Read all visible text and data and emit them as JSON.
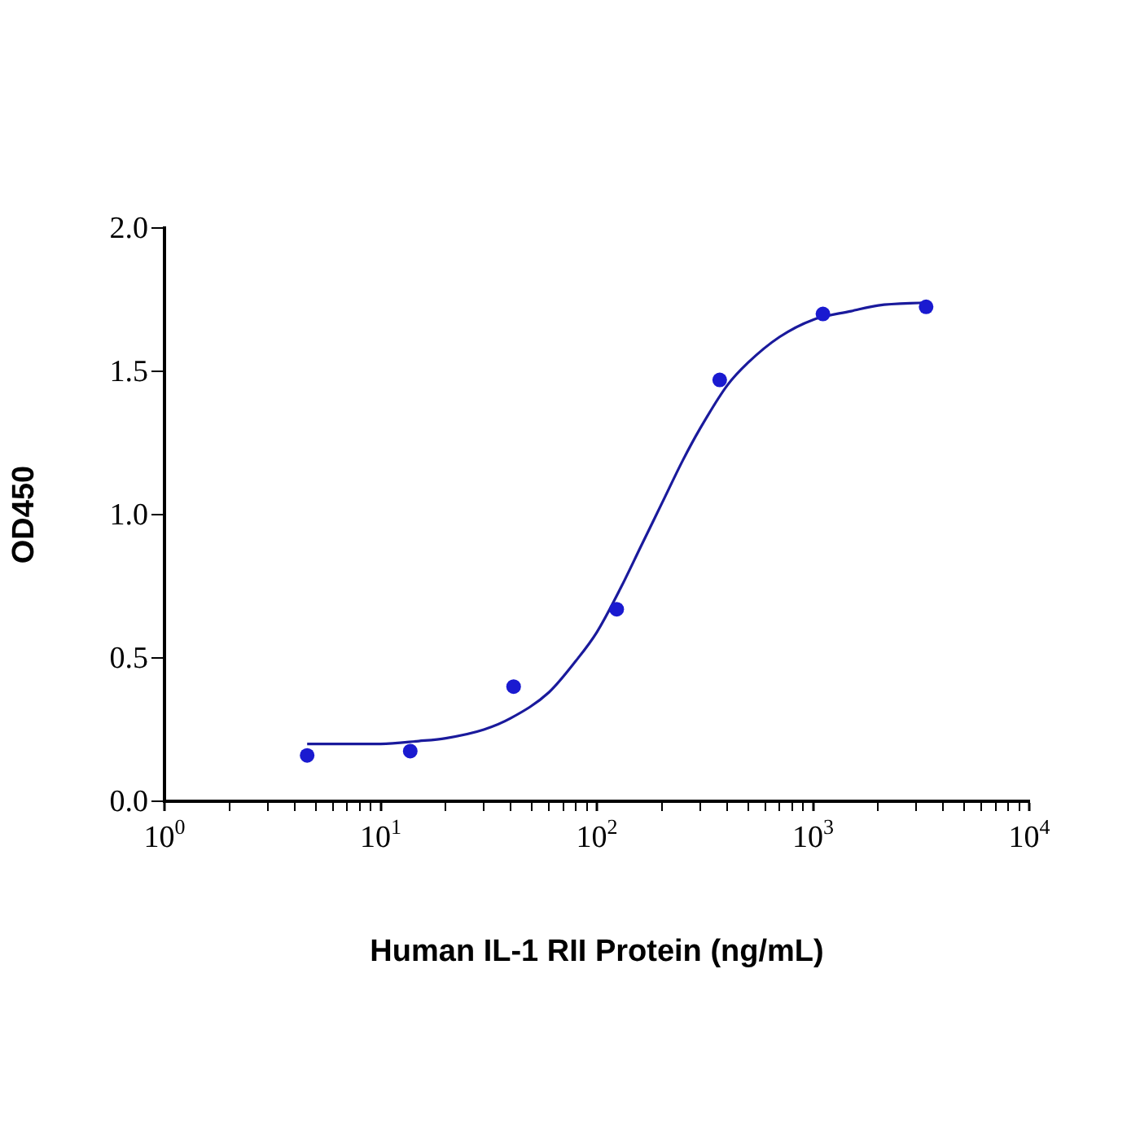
{
  "chart_data": {
    "type": "scatter",
    "xlabel": "Human IL-1 RII Protein (ng/mL)",
    "ylabel": "OD450",
    "log": "x",
    "grid": false,
    "xlim": [
      1,
      10000
    ],
    "xticks": [
      {
        "value": 1,
        "label": "10$^{0}$"
      },
      {
        "value": 2,
        "label": null
      },
      {
        "value": 3,
        "label": null
      },
      {
        "value": 4,
        "label": null
      },
      {
        "value": 5,
        "label": null
      },
      {
        "value": 6,
        "label": null
      },
      {
        "value": 7,
        "label": null
      },
      {
        "value": 8,
        "label": null
      },
      {
        "value": 9,
        "label": null
      },
      {
        "value": 10,
        "label": "10$^{1}$"
      },
      {
        "value": 20,
        "label": null
      },
      {
        "value": 30,
        "label": null
      },
      {
        "value": 40,
        "label": null
      },
      {
        "value": 50,
        "label": null
      },
      {
        "value": 60,
        "label": null
      },
      {
        "value": 70,
        "label": null
      },
      {
        "value": 80,
        "label": null
      },
      {
        "value": 90,
        "label": null
      },
      {
        "value": 100,
        "label": "10$^{2}$"
      },
      {
        "value": 200,
        "label": null
      },
      {
        "value": 300,
        "label": null
      },
      {
        "value": 400,
        "label": null
      },
      {
        "value": 500,
        "label": null
      },
      {
        "value": 600,
        "label": null
      },
      {
        "value": 700,
        "label": null
      },
      {
        "value": 800,
        "label": null
      },
      {
        "value": 900,
        "label": null
      },
      {
        "value": 1000,
        "label": "10$^{3}$"
      },
      {
        "value": 2000,
        "label": null
      },
      {
        "value": 3000,
        "label": null
      },
      {
        "value": 4000,
        "label": null
      },
      {
        "value": 5000,
        "label": null
      },
      {
        "value": 6000,
        "label": null
      },
      {
        "value": 7000,
        "label": null
      },
      {
        "value": 8000,
        "label": null
      },
      {
        "value": 9000,
        "label": null
      },
      {
        "value": 10000,
        "label": "10$^{4}$"
      }
    ],
    "ylim": [
      0,
      2
    ],
    "yticks": [
      {
        "value": 0,
        "label": "0.0"
      },
      {
        "value": 0.5,
        "label": "0.5"
      },
      {
        "value": 1,
        "label": "1.0"
      },
      {
        "value": 1.5,
        "label": "1.5"
      },
      {
        "value": 2,
        "label": "2.0"
      }
    ],
    "series": [
      {
        "marker": "circle",
        "color": "#1a1ad0",
        "x": [
          4.57,
          13.7,
          41.2,
          123.5,
          370,
          1111,
          3333
        ],
        "values": [
          0.16,
          0.175,
          0.4,
          0.67,
          1.47,
          1.7,
          1.725
        ]
      },
      {
        "type": "line",
        "marker": "none",
        "color": "#1a1a9c",
        "x": [
          4.57,
          7,
          10,
          15,
          20,
          30,
          40,
          60,
          80,
          100,
          130,
          160,
          200,
          250,
          300,
          400,
          500,
          700,
          1000,
          1500,
          2000,
          3333
        ],
        "values": [
          0.2,
          0.2,
          0.2,
          0.21,
          0.22,
          0.25,
          0.29,
          0.38,
          0.49,
          0.59,
          0.75,
          0.89,
          1.04,
          1.19,
          1.3,
          1.45,
          1.53,
          1.62,
          1.68,
          1.71,
          1.73,
          1.74
        ]
      }
    ]
  }
}
